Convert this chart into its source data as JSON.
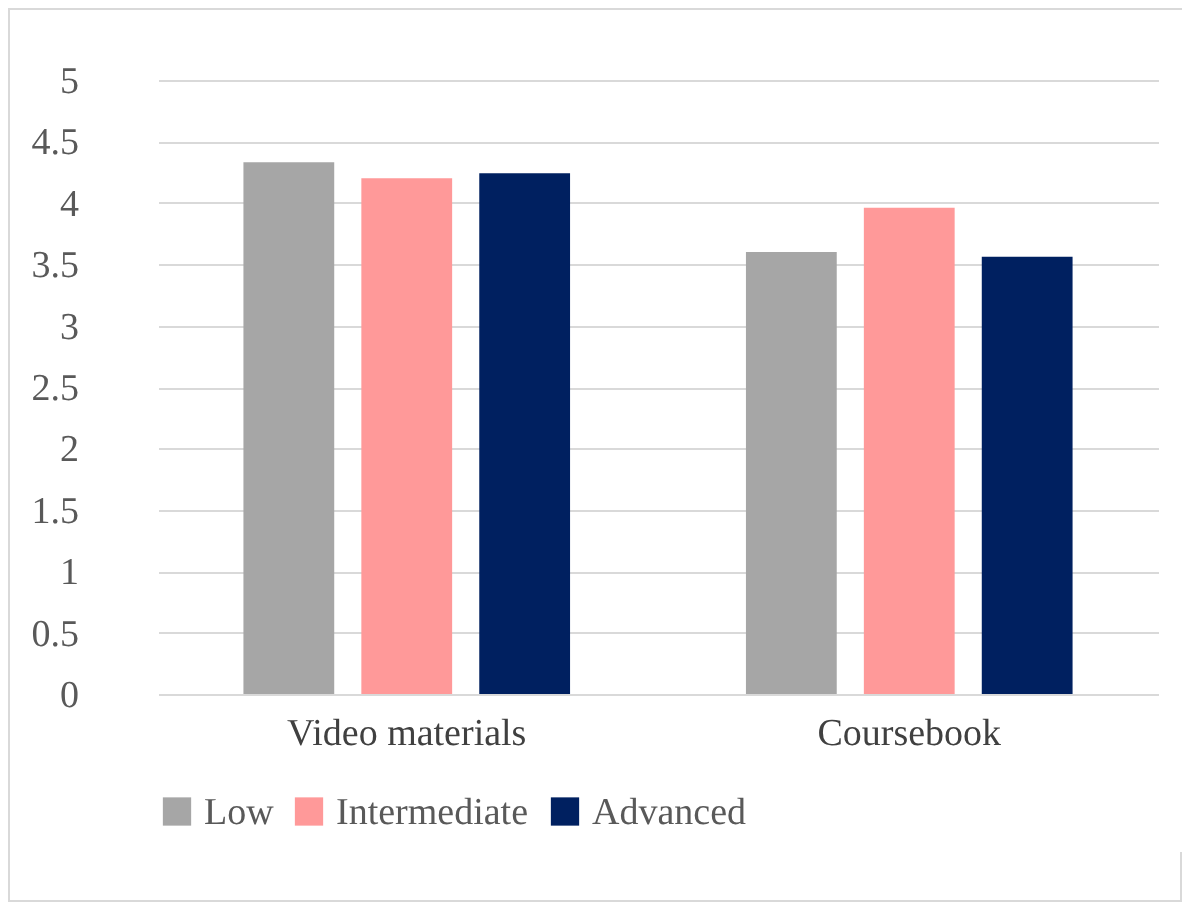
{
  "chart_data": {
    "type": "bar",
    "categories": [
      "Video materials",
      "Coursebook"
    ],
    "series": [
      {
        "name": "Low",
        "color": "#a6a6a6",
        "values": [
          4.33,
          3.6
        ]
      },
      {
        "name": "Intermediate",
        "color": "#ff9999",
        "values": [
          4.2,
          3.96
        ]
      },
      {
        "name": "Advanced",
        "color": "#002060",
        "values": [
          4.24,
          3.56
        ]
      }
    ],
    "ylim": [
      0,
      5
    ],
    "yticks": [
      0,
      0.5,
      1,
      1.5,
      2,
      2.5,
      3,
      3.5,
      4,
      4.5,
      5
    ],
    "grid": "y",
    "legend": "bottom"
  }
}
